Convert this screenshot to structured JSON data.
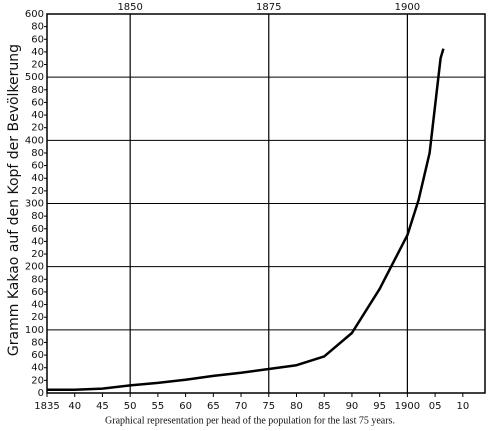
{
  "chart_data": {
    "type": "line",
    "caption": "Graphical representation per head of the population for the last 75 years.",
    "ylabel": "Gramm Kakao auf den Kopf der Bevölkerung",
    "x": [
      1835,
      1840,
      1845,
      1850,
      1855,
      1860,
      1865,
      1870,
      1875,
      1880,
      1885,
      1890,
      1895,
      1900,
      1902,
      1904,
      1906,
      1906.5
    ],
    "values": [
      5,
      5,
      7,
      12,
      16,
      21,
      27,
      32,
      38,
      44,
      58,
      95,
      165,
      250,
      305,
      380,
      530,
      545
    ],
    "color": "#000000",
    "xlim": [
      1835,
      1914
    ],
    "xticks": [
      {
        "value": 1835,
        "label": "1835"
      },
      {
        "value": 1840,
        "label": "40"
      },
      {
        "value": 1845,
        "label": "45"
      },
      {
        "value": 1850,
        "label": "50"
      },
      {
        "value": 1855,
        "label": "55"
      },
      {
        "value": 1860,
        "label": "60"
      },
      {
        "value": 1865,
        "label": "65"
      },
      {
        "value": 1870,
        "label": "70"
      },
      {
        "value": 1875,
        "label": "75"
      },
      {
        "value": 1880,
        "label": "80"
      },
      {
        "value": 1885,
        "label": "85"
      },
      {
        "value": 1890,
        "label": "90"
      },
      {
        "value": 1895,
        "label": "95"
      },
      1900,
      {
        "value": 1905,
        "label": "05"
      },
      {
        "value": 1910,
        "label": "10"
      }
    ],
    "xticks_top": [
      1850,
      1875,
      1900
    ],
    "ylim": [
      0,
      600
    ],
    "yticks": [
      0,
      20,
      40,
      60,
      80,
      100,
      {
        "value": 120,
        "label": "20"
      },
      {
        "value": 140,
        "label": "40"
      },
      {
        "value": 160,
        "label": "60"
      },
      {
        "value": 180,
        "label": "80"
      },
      200,
      {
        "value": 220,
        "label": "20"
      },
      {
        "value": 240,
        "label": "40"
      },
      {
        "value": 260,
        "label": "60"
      },
      {
        "value": 280,
        "label": "80"
      },
      300,
      {
        "value": 320,
        "label": "20"
      },
      {
        "value": 340,
        "label": "40"
      },
      {
        "value": 360,
        "label": "60"
      },
      {
        "value": 380,
        "label": "80"
      },
      400,
      {
        "value": 420,
        "label": "20"
      },
      {
        "value": 440,
        "label": "40"
      },
      {
        "value": 460,
        "label": "60"
      },
      {
        "value": 480,
        "label": "80"
      },
      500,
      {
        "value": 520,
        "label": "20"
      },
      {
        "value": 540,
        "label": "40"
      },
      {
        "value": 560,
        "label": "60"
      },
      {
        "value": 580,
        "label": "80"
      },
      600
    ],
    "grid": true
  }
}
